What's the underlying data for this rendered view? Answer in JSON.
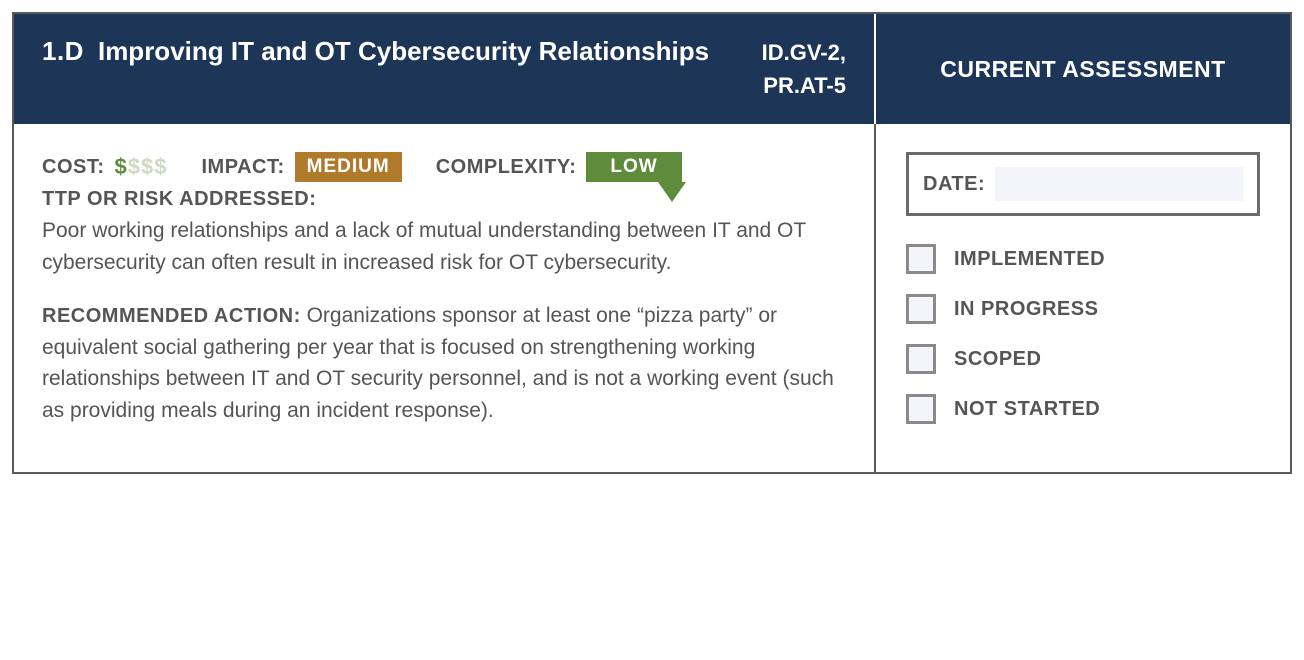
{
  "header": {
    "id": "1.D",
    "title": "Improving IT and OT Cybersecurity Relationships",
    "refs_line1": "ID.GV-2,",
    "refs_line2": "PR.AT-5",
    "assessment_title": "CURRENT ASSESSMENT"
  },
  "meta": {
    "cost_label": "COST:",
    "cost_filled": 1,
    "cost_total": 4,
    "cost_symbol": "$",
    "cost_on_color": "#5f8b3c",
    "cost_off_color": "#cdd9c0",
    "impact_label": "IMPACT:",
    "impact_value": "MEDIUM",
    "impact_color": "#b07a2a",
    "complexity_label": "COMPLEXITY:",
    "complexity_value": "LOW",
    "complexity_color": "#5f8b3c"
  },
  "ttp": {
    "label": "TTP OR RISK ADDRESSED:",
    "text": "Poor working relationships and a lack of mutual understanding between IT and OT cybersecurity can often result in increased risk for OT cybersecurity."
  },
  "action": {
    "label": "RECOMMENDED ACTION:",
    "text": "Organizations sponsor at least one “pizza party” or equivalent social gathering per year that is focused on strengthening working relationships between IT and OT security personnel, and is not a working event (such as providing meals during an incident response)."
  },
  "assessment": {
    "date_label": "DATE:",
    "date_value": "",
    "options": [
      {
        "label": "IMPLEMENTED",
        "checked": false
      },
      {
        "label": "IN PROGRESS",
        "checked": false
      },
      {
        "label": "SCOPED",
        "checked": false
      },
      {
        "label": "NOT STARTED",
        "checked": false
      }
    ]
  },
  "colors": {
    "header_bg": "#1d3557",
    "border": "#5a5a5a",
    "text": "#555555"
  }
}
